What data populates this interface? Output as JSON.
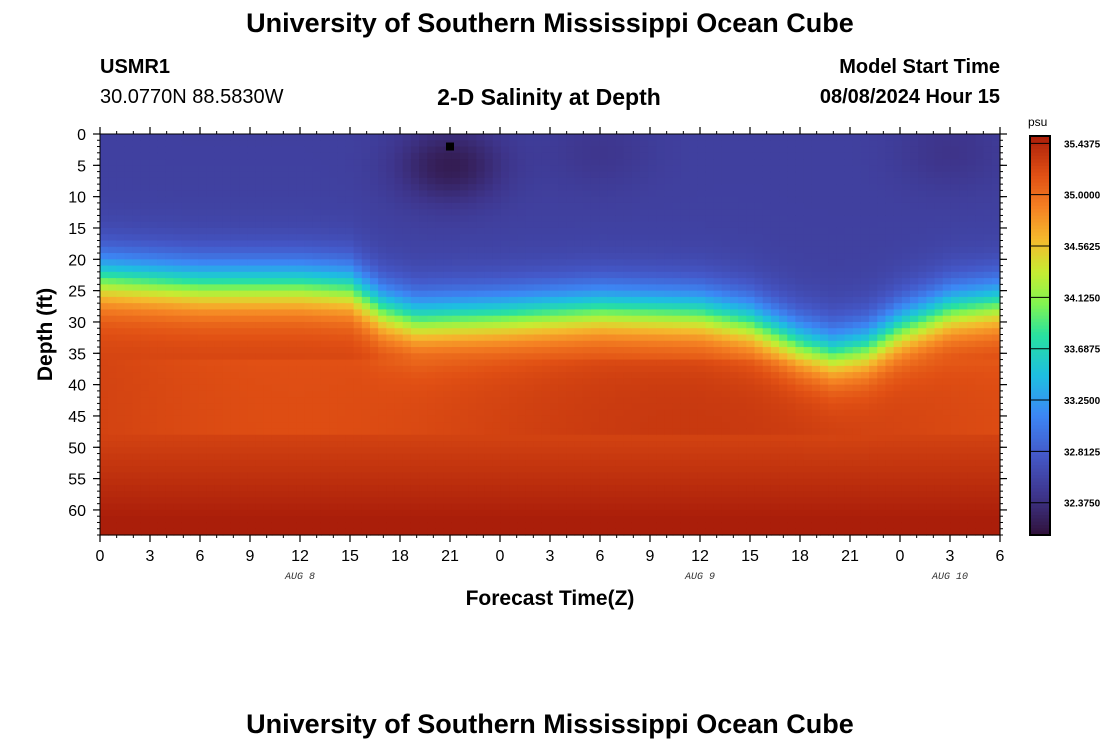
{
  "header": {
    "title": "University of Southern Mississippi Ocean Cube",
    "station": "USMR1",
    "coords": "30.0770N  88.5830W",
    "subtitle": "2-D Salinity at Depth",
    "model_label": "Model Start Time",
    "model_time": "08/08/2024 Hour 15"
  },
  "footer": {
    "title": "University of Southern Mississippi Ocean Cube"
  },
  "chart_data": {
    "type": "heatmap",
    "title": "2-D Salinity at Depth",
    "xlabel": "Forecast Time(Z)",
    "ylabel": "Depth (ft)",
    "x_ticks_hours": [
      0,
      3,
      6,
      9,
      12,
      15,
      18,
      21,
      24,
      27,
      30,
      33,
      36,
      39,
      42,
      45,
      48,
      51,
      54
    ],
    "x_tick_labels": [
      "0",
      "3",
      "6",
      "9",
      "12",
      "15",
      "18",
      "21",
      "0",
      "3",
      "6",
      "9",
      "12",
      "15",
      "18",
      "21",
      "0",
      "3",
      "6"
    ],
    "xlim_hours": [
      0,
      54
    ],
    "date_labels": [
      {
        "label": "AUG 8",
        "hour": 12
      },
      {
        "label": "AUG 9",
        "hour": 36
      },
      {
        "label": "AUG 10",
        "hour": 51
      }
    ],
    "y_ticks": [
      0,
      5,
      10,
      15,
      20,
      25,
      30,
      35,
      40,
      45,
      50,
      55,
      60
    ],
    "ylim": [
      0,
      64
    ],
    "colorbar": {
      "unit": "psu",
      "min": 32.1,
      "max": 35.5,
      "tick_values": [
        35.4375,
        35.0,
        34.5625,
        34.125,
        33.6875,
        33.25,
        32.8125,
        32.375
      ],
      "tick_labels": [
        "35.4375",
        "35.0000",
        "34.5625",
        "34.1250",
        "33.6875",
        "33.2500",
        "32.8125",
        "32.3750"
      ]
    },
    "halocline_depth_ft": [
      {
        "hour": 0,
        "depth": 23
      },
      {
        "hour": 6,
        "depth": 24
      },
      {
        "hour": 12,
        "depth": 24
      },
      {
        "hour": 15,
        "depth": 24.5
      },
      {
        "hour": 17,
        "depth": 28
      },
      {
        "hour": 19,
        "depth": 29.5
      },
      {
        "hour": 24,
        "depth": 29
      },
      {
        "hour": 30,
        "depth": 28
      },
      {
        "hour": 36,
        "depth": 28.5
      },
      {
        "hour": 39,
        "depth": 30
      },
      {
        "hour": 42,
        "depth": 33.5
      },
      {
        "hour": 44,
        "depth": 35
      },
      {
        "hour": 46,
        "depth": 34
      },
      {
        "hour": 48,
        "depth": 31
      },
      {
        "hour": 51,
        "depth": 28
      },
      {
        "hour": 54,
        "depth": 27
      }
    ],
    "fresh_patches": [
      {
        "hour": 21,
        "depth": 5,
        "salinity_drop": 0.35
      },
      {
        "hour": 30,
        "depth": 3,
        "salinity_drop": 0.1
      },
      {
        "hour": 51,
        "depth": 3,
        "salinity_drop": 0.12
      }
    ],
    "surface_salinity": 32.55,
    "deep_salinity": 35.25,
    "marker": {
      "hour": 21,
      "depth": 2
    }
  }
}
